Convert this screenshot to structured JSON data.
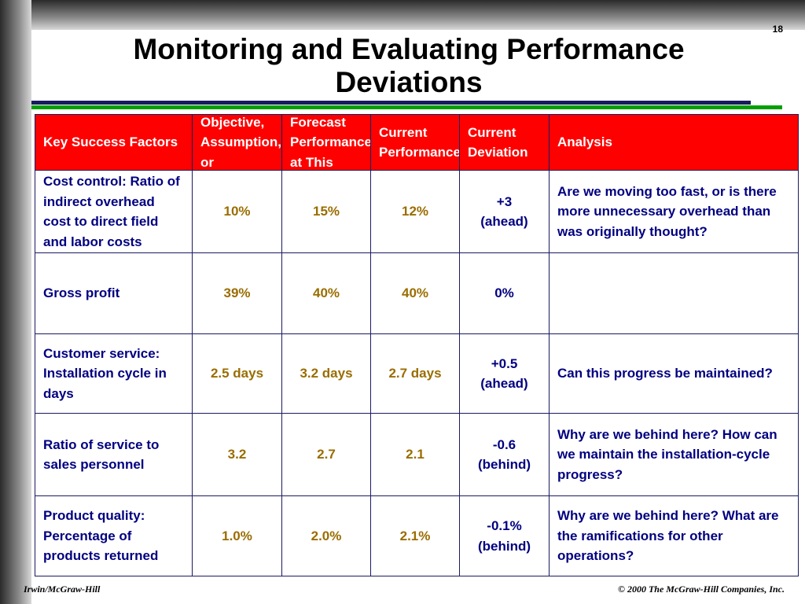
{
  "page_number": "18",
  "title": "Monitoring and Evaluating Performance Deviations",
  "table": {
    "header": [
      "Key Success Factors",
      "Objective, Assumption, or",
      "Forecast Performance at This",
      "Current Performance",
      "Current Deviation",
      "Analysis"
    ],
    "rows": [
      [
        "Cost control: Ratio of indirect overhead cost to direct field and labor costs",
        "10%",
        "15%",
        "12%",
        [
          "+3",
          "(ahead)"
        ],
        "Are we moving too fast, or is there more unnecessary overhead than was originally thought?"
      ],
      [
        "Gross profit",
        "39%",
        "40%",
        "40%",
        [
          "0%"
        ],
        ""
      ],
      [
        "Customer service: Installation cycle in days",
        "2.5 days",
        "3.2 days",
        "2.7 days",
        [
          "+0.5",
          "(ahead)"
        ],
        "Can this progress be maintained?"
      ],
      [
        "Ratio of service to sales personnel",
        "3.2",
        "2.7",
        "2.1",
        [
          "-0.6",
          "(behind)"
        ],
        "Why are we behind here? How can we maintain the installation-cycle progress?"
      ],
      [
        "Product quality: Percentage of products returned",
        "1.0%",
        "2.0%",
        "2.1%",
        [
          "-0.1%",
          "(behind)"
        ],
        "Why are we behind here? What are the ramifications for other operations?"
      ]
    ]
  },
  "footer": {
    "left": "Irwin/McGraw-Hill",
    "right": "© 2000 The McGraw-Hill Companies, Inc."
  }
}
